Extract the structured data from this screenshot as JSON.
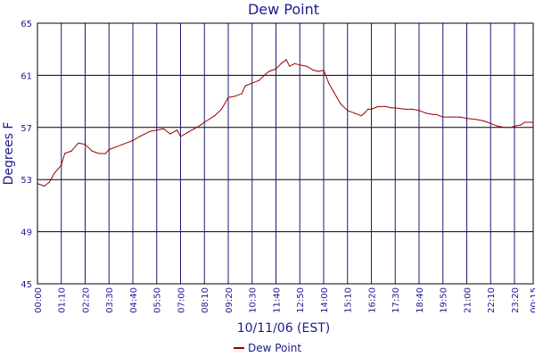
{
  "chart_data": {
    "type": "line",
    "title": "Dew Point",
    "xlabel": "10/11/06 (EST)",
    "ylabel": "Degrees F",
    "ylim": [
      45,
      65
    ],
    "y_ticks": [
      "45",
      "49",
      "53",
      "57",
      "61",
      "65"
    ],
    "x_ticks": [
      "00:00",
      "01:10",
      "02:20",
      "03:30",
      "04:40",
      "05:50",
      "07:00",
      "08:10",
      "09:20",
      "10:30",
      "11:40",
      "12:50",
      "14:00",
      "15:10",
      "16:20",
      "17:30",
      "18:40",
      "19:50",
      "21:00",
      "22:10",
      "23:20",
      "00:15"
    ],
    "grid": true,
    "legend": "bottom",
    "colors": {
      "series": "#990000",
      "grid": "#1a1a7a",
      "text": "#1a1a8c"
    },
    "series": [
      {
        "name": "Dew Point",
        "x": [
          "00:00",
          "00:20",
          "00:35",
          "00:50",
          "01:10",
          "01:20",
          "01:40",
          "02:00",
          "02:20",
          "02:40",
          "03:00",
          "03:20",
          "03:30",
          "03:50",
          "04:10",
          "04:40",
          "05:00",
          "05:30",
          "05:50",
          "06:10",
          "06:30",
          "06:50",
          "07:00",
          "07:20",
          "07:40",
          "08:00",
          "08:10",
          "08:40",
          "09:00",
          "09:20",
          "09:40",
          "10:00",
          "10:10",
          "10:30",
          "10:50",
          "11:10",
          "11:20",
          "11:40",
          "11:55",
          "12:10",
          "12:20",
          "12:35",
          "12:50",
          "13:10",
          "13:30",
          "13:45",
          "14:00",
          "14:15",
          "14:30",
          "14:50",
          "15:10",
          "15:30",
          "15:50",
          "16:00",
          "16:10",
          "16:20",
          "16:40",
          "17:00",
          "17:20",
          "17:30",
          "18:00",
          "18:20",
          "18:40",
          "19:00",
          "19:20",
          "19:30",
          "19:50",
          "20:20",
          "20:40",
          "21:00",
          "21:30",
          "21:50",
          "22:10",
          "22:30",
          "22:50",
          "23:10",
          "23:20",
          "23:40",
          "23:50",
          "00:15"
        ],
        "y": [
          52.7,
          52.5,
          52.8,
          53.5,
          54.1,
          55.0,
          55.2,
          55.8,
          55.7,
          55.2,
          55.0,
          55.0,
          55.3,
          55.5,
          55.7,
          56.0,
          56.3,
          56.7,
          56.8,
          56.9,
          56.5,
          56.8,
          56.3,
          56.6,
          56.9,
          57.2,
          57.4,
          57.9,
          58.4,
          59.3,
          59.4,
          59.6,
          60.2,
          60.4,
          60.6,
          61.1,
          61.3,
          61.5,
          61.9,
          62.2,
          61.7,
          61.9,
          61.8,
          61.7,
          61.4,
          61.3,
          61.4,
          60.4,
          59.7,
          58.8,
          58.3,
          58.1,
          57.9,
          58.1,
          58.4,
          58.4,
          58.6,
          58.6,
          58.5,
          58.5,
          58.4,
          58.4,
          58.3,
          58.1,
          58.0,
          58.0,
          57.8,
          57.8,
          57.8,
          57.7,
          57.6,
          57.5,
          57.3,
          57.1,
          57.0,
          57.0,
          57.1,
          57.2,
          57.4,
          57.4
        ]
      }
    ]
  }
}
